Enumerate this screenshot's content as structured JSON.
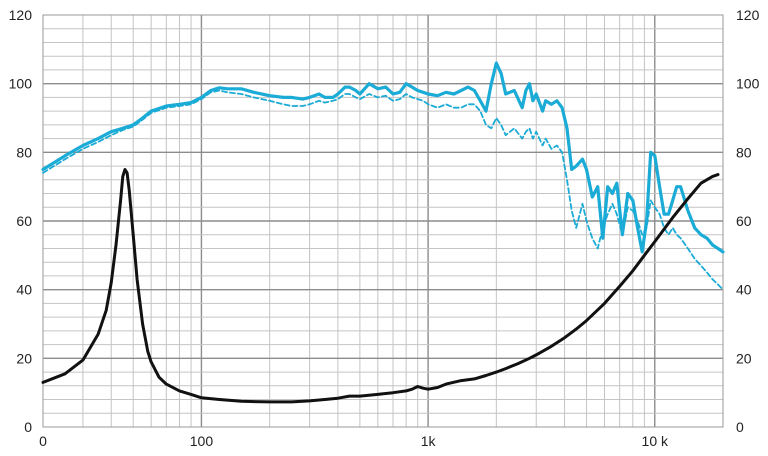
{
  "chart_data": {
    "type": "line",
    "x_scale": "log",
    "xlim": [
      20,
      20000
    ],
    "ylim": [
      0,
      120
    ],
    "grid": true,
    "legend": "none",
    "y_ticks": [
      "0",
      "20",
      "40",
      "60",
      "80",
      "100",
      "120"
    ],
    "y_tick_values": [
      0,
      20,
      40,
      60,
      80,
      100,
      120
    ],
    "x_tick_labels": [
      {
        "label": "100",
        "value": 100
      },
      {
        "label": "1k",
        "value": 1000
      },
      {
        "label": "10 k",
        "value": 10000
      }
    ],
    "series": [
      {
        "style": "solid",
        "color": "#1aabd6",
        "x": [
          20,
          25,
          30,
          35,
          40,
          45,
          50,
          55,
          60,
          70,
          80,
          90,
          100,
          110,
          120,
          130,
          150,
          170,
          200,
          230,
          250,
          280,
          300,
          330,
          350,
          380,
          400,
          430,
          450,
          480,
          500,
          550,
          600,
          650,
          700,
          750,
          800,
          850,
          900,
          950,
          1000,
          1100,
          1200,
          1300,
          1400,
          1500,
          1600,
          1700,
          1800,
          1900,
          2000,
          2100,
          2200,
          2400,
          2600,
          2700,
          2800,
          2900,
          3000,
          3200,
          3300,
          3500,
          3700,
          3900,
          4100,
          4300,
          4500,
          4800,
          5000,
          5300,
          5600,
          5900,
          6200,
          6500,
          6800,
          7200,
          7600,
          8000,
          8400,
          8800,
          9200,
          9600,
          10000,
          10500,
          11000,
          11500,
          12000,
          12500,
          13000,
          14000,
          15000,
          16000,
          17000,
          18000,
          19000,
          20000
        ],
        "y": [
          75,
          79,
          82,
          84,
          86,
          87,
          88,
          90,
          92,
          93.5,
          94,
          94.5,
          96,
          98,
          98.8,
          98.5,
          98.5,
          97.5,
          96.5,
          96,
          96,
          95.5,
          96,
          97,
          96,
          96,
          97,
          99,
          99,
          98,
          97,
          100,
          98.5,
          99,
          97,
          97.5,
          100,
          99,
          98,
          97.5,
          97,
          96.5,
          97.5,
          97,
          98,
          99,
          98,
          95,
          92,
          100,
          106,
          103,
          97,
          98,
          93,
          98,
          100,
          95,
          97,
          92,
          95,
          94,
          95,
          93,
          87,
          75,
          76,
          78,
          75,
          67,
          70,
          55,
          70,
          68,
          71,
          56,
          68,
          66,
          58,
          51,
          60,
          80,
          79,
          70,
          62,
          62,
          66,
          70,
          70,
          63,
          58,
          56,
          55,
          53,
          52,
          51
        ]
      },
      {
        "style": "dashed",
        "color": "#1aabd6",
        "x": [
          20,
          25,
          30,
          35,
          40,
          45,
          50,
          55,
          60,
          70,
          80,
          90,
          100,
          110,
          120,
          130,
          150,
          170,
          200,
          230,
          250,
          280,
          300,
          330,
          350,
          380,
          400,
          430,
          450,
          480,
          500,
          550,
          600,
          650,
          700,
          750,
          800,
          850,
          900,
          950,
          1000,
          1100,
          1200,
          1300,
          1400,
          1500,
          1600,
          1700,
          1800,
          1900,
          2000,
          2100,
          2200,
          2400,
          2600,
          2700,
          2800,
          2900,
          3000,
          3200,
          3300,
          3500,
          3700,
          3900,
          4100,
          4300,
          4500,
          4800,
          5000,
          5300,
          5600,
          5900,
          6200,
          6500,
          6800,
          7200,
          7600,
          8000,
          8400,
          8800,
          9200,
          9600,
          10000,
          10500,
          11000,
          11500,
          12000,
          12500,
          13000,
          14000,
          15000,
          16000,
          17000,
          18000,
          19000,
          20000
        ],
        "y": [
          74,
          78,
          81,
          83,
          85,
          86.5,
          87.5,
          89.5,
          91.5,
          93,
          93.5,
          94,
          95.5,
          97.5,
          98,
          97.5,
          97,
          96,
          95,
          94,
          93.5,
          93.5,
          94,
          95,
          94.5,
          95,
          95.5,
          97,
          97,
          96,
          95.5,
          97,
          96,
          96.5,
          95,
          95.5,
          97,
          96,
          95.5,
          95,
          94,
          93,
          94,
          93,
          93,
          94,
          94,
          92,
          88,
          87,
          90,
          88,
          85,
          87,
          84,
          86,
          87,
          84,
          86,
          82,
          84,
          81,
          82,
          80,
          72,
          63,
          58,
          65,
          60,
          55,
          52,
          58,
          62,
          65,
          62,
          56,
          64,
          63,
          60,
          56,
          58,
          66,
          64,
          62,
          58,
          56,
          58,
          56,
          55,
          52,
          49,
          47,
          45,
          43,
          41.5,
          40
        ]
      },
      {
        "style": "solid",
        "color": "#111111",
        "x": [
          20,
          25,
          30,
          35,
          38,
          40,
          42,
          44,
          45,
          46,
          47,
          48,
          50,
          52,
          55,
          58,
          60,
          65,
          70,
          80,
          90,
          100,
          120,
          150,
          200,
          250,
          300,
          350,
          400,
          450,
          500,
          600,
          700,
          800,
          850,
          900,
          950,
          1000,
          1100,
          1200,
          1400,
          1600,
          1800,
          2000,
          2200,
          2500,
          2800,
          3000,
          3500,
          4000,
          4500,
          5000,
          6000,
          7000,
          8000,
          9000,
          10000,
          12000,
          14000,
          16000,
          18000,
          19000
        ],
        "y": [
          13,
          15.5,
          19.5,
          27,
          34,
          42,
          53,
          66,
          73,
          75,
          74,
          69,
          56,
          43,
          30,
          22,
          19,
          14.5,
          12.5,
          10.5,
          9.5,
          8.5,
          8,
          7.5,
          7.3,
          7.3,
          7.6,
          8,
          8.4,
          9,
          9,
          9.5,
          10,
          10.5,
          11,
          11.8,
          11.3,
          11,
          11.5,
          12.5,
          13.5,
          14,
          15,
          16,
          17,
          18.5,
          20,
          21,
          23.5,
          26,
          28.5,
          31,
          36,
          41,
          45.5,
          50,
          54,
          61,
          66.5,
          71,
          73,
          73.5
        ]
      }
    ]
  }
}
